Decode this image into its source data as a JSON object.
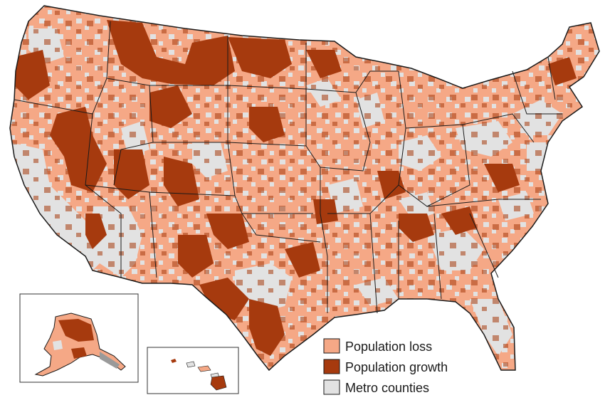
{
  "colors": {
    "population_loss": "#f5a886",
    "population_growth": "#a63a0e",
    "metro": "#e2e2e2",
    "border": "#1a1a1a"
  },
  "legend": {
    "items": [
      {
        "key": "population_loss",
        "label": "Population loss"
      },
      {
        "key": "population_growth",
        "label": "Population growth"
      },
      {
        "key": "metro",
        "label": "Metro counties"
      }
    ]
  },
  "insets": [
    "Alaska",
    "Hawaii"
  ]
}
